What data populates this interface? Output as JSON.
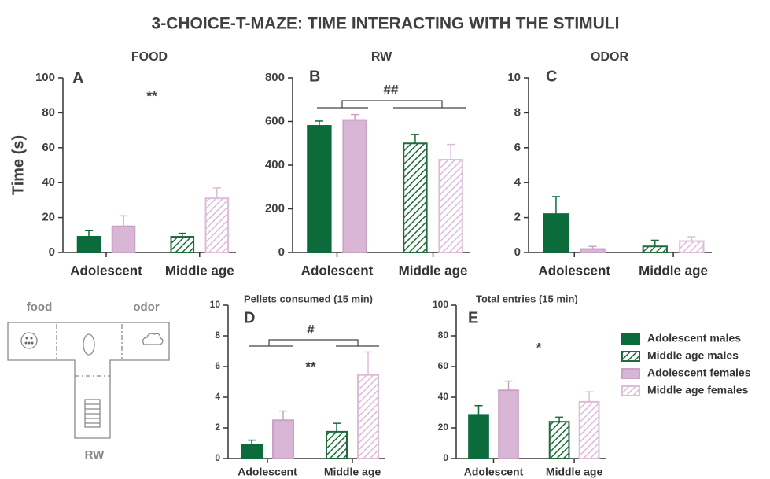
{
  "title": "3-CHOICE-T-MAZE: TIME INTERACTING WITH THE STIMULI",
  "series": [
    {
      "name": "Adolescent males",
      "color": "#0b6b3a",
      "hatched": false
    },
    {
      "name": "Middle age males",
      "color": "#1e6b3c",
      "hatched": true
    },
    {
      "name": "Adolescent females",
      "color": "#d9b6d6",
      "hatched": false
    },
    {
      "name": "Middle age females",
      "color": "#d9b6d6",
      "hatched": true
    }
  ],
  "diagram": {
    "labels": [
      "food",
      "odor",
      "RW"
    ]
  },
  "chart_data": [
    {
      "type": "bar",
      "title": "FOOD",
      "label": "A",
      "ylabel": "Time (s)",
      "categories": [
        "Adolescent",
        "Middle age"
      ],
      "ylim": [
        0,
        100
      ],
      "yticks": [
        0,
        20,
        40,
        60,
        80,
        100
      ],
      "annotations": [
        "**"
      ],
      "series": [
        {
          "values": [
            9,
            null
          ],
          "errors": [
            3.5,
            null
          ]
        },
        {
          "values": [
            null,
            9
          ],
          "errors": [
            null,
            2
          ]
        },
        {
          "values": [
            15,
            null
          ],
          "errors": [
            6,
            null
          ]
        },
        {
          "values": [
            null,
            31
          ],
          "errors": [
            null,
            6
          ]
        }
      ]
    },
    {
      "type": "bar",
      "title": "RW",
      "label": "B",
      "categories": [
        "Adolescent",
        "Middle age"
      ],
      "ylim": [
        0,
        800
      ],
      "yticks": [
        0,
        200,
        400,
        600,
        800
      ],
      "annotations": [
        "##"
      ],
      "series": [
        {
          "values": [
            580,
            null
          ],
          "errors": [
            22,
            null
          ]
        },
        {
          "values": [
            null,
            500
          ],
          "errors": [
            null,
            40
          ]
        },
        {
          "values": [
            607,
            null
          ],
          "errors": [
            25,
            null
          ]
        },
        {
          "values": [
            null,
            425
          ],
          "errors": [
            null,
            70
          ]
        }
      ]
    },
    {
      "type": "bar",
      "title": "ODOR",
      "label": "C",
      "categories": [
        "Adolescent",
        "Middle age"
      ],
      "ylim": [
        0,
        10
      ],
      "yticks": [
        0,
        2,
        4,
        6,
        8,
        10
      ],
      "annotations": [],
      "series": [
        {
          "values": [
            2.2,
            null
          ],
          "errors": [
            1.0,
            null
          ]
        },
        {
          "values": [
            null,
            0.35
          ],
          "errors": [
            null,
            0.35
          ]
        },
        {
          "values": [
            0.2,
            null
          ],
          "errors": [
            0.15,
            null
          ]
        },
        {
          "values": [
            null,
            0.65
          ],
          "errors": [
            null,
            0.25
          ]
        }
      ]
    },
    {
      "type": "bar",
      "title": "Pellets consumed (15 min)",
      "label": "D",
      "categories": [
        "Adolescent",
        "Middle age"
      ],
      "ylim": [
        0,
        10
      ],
      "yticks": [
        0,
        2,
        4,
        6,
        8,
        10
      ],
      "annotations": [
        "#",
        "**"
      ],
      "series": [
        {
          "values": [
            0.9,
            null
          ],
          "errors": [
            0.3,
            null
          ]
        },
        {
          "values": [
            null,
            1.75
          ],
          "errors": [
            null,
            0.55
          ]
        },
        {
          "values": [
            2.5,
            null
          ],
          "errors": [
            0.6,
            null
          ]
        },
        {
          "values": [
            null,
            5.45
          ],
          "errors": [
            null,
            1.5
          ]
        }
      ]
    },
    {
      "type": "bar",
      "title": "Total entries (15 min)",
      "label": "E",
      "categories": [
        "Adolescent",
        "Middle age"
      ],
      "ylim": [
        0,
        100
      ],
      "yticks": [
        0,
        20,
        40,
        60,
        80,
        100
      ],
      "annotations": [
        "*"
      ],
      "series": [
        {
          "values": [
            28.5,
            null
          ],
          "errors": [
            6,
            null
          ]
        },
        {
          "values": [
            null,
            24
          ],
          "errors": [
            null,
            3
          ]
        },
        {
          "values": [
            44.5,
            null
          ],
          "errors": [
            6,
            null
          ]
        },
        {
          "values": [
            null,
            37
          ],
          "errors": [
            null,
            6.5
          ]
        }
      ]
    }
  ]
}
